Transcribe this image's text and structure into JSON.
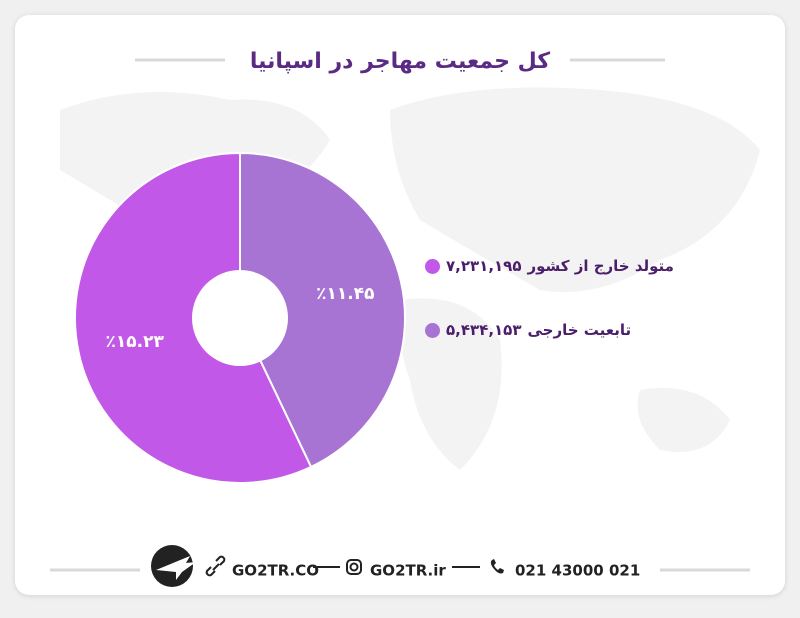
{
  "chart_data": {
    "type": "pie",
    "title": "کل جمعیت مهاجر در اسپانیا",
    "categories": [
      "متولد خارج از کشور",
      "تابعیت خارجی"
    ],
    "values": [
      15.23,
      11.45
    ],
    "value_labels": [
      "٪۱۵.۲۳",
      "٪۱۱.۴۵"
    ],
    "colors": [
      "#c158e8",
      "#a874d4"
    ],
    "counts": [
      7231195,
      5434153
    ],
    "count_labels": [
      "۷,۲۳۱,۱۹۵",
      "۵,۴۳۴,۱۵۳"
    ]
  },
  "footer": {
    "website": "GO2TR.CO",
    "instagram": "GO2TR.ir",
    "phone": "021 43000 021"
  }
}
